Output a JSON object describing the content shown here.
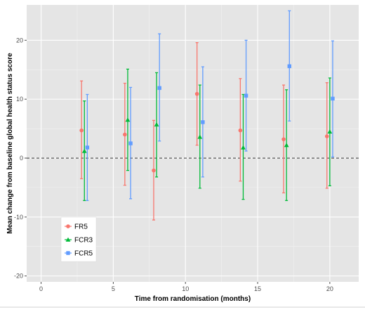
{
  "chart_data": {
    "type": "scatter",
    "title": "",
    "xlabel": "Time from randomisation (months)",
    "ylabel": "Mean change from baseline global health status score",
    "xlim": [
      -1,
      22
    ],
    "ylim": [
      -21,
      26
    ],
    "xticks": [
      0,
      5,
      10,
      15,
      20
    ],
    "yticks": [
      -20,
      -10,
      0,
      10,
      20
    ],
    "grid": true,
    "reference_line": {
      "y": 0,
      "style": "dashed"
    },
    "legend": {
      "position": "bottom-left"
    },
    "series": [
      {
        "name": "FR5",
        "color": "#F8766D",
        "marker": "circle",
        "points": [
          {
            "x": 2.8,
            "y": 4.7,
            "low": -3.5,
            "high": 13.1
          },
          {
            "x": 5.8,
            "y": 4.0,
            "low": -4.6,
            "high": 12.7
          },
          {
            "x": 7.8,
            "y": -2.1,
            "low": -10.5,
            "high": 6.4
          },
          {
            "x": 10.8,
            "y": 10.9,
            "low": 2.2,
            "high": 19.6
          },
          {
            "x": 13.8,
            "y": 4.7,
            "low": -3.9,
            "high": 13.5
          },
          {
            "x": 16.8,
            "y": 3.2,
            "low": -5.9,
            "high": 12.4
          },
          {
            "x": 19.8,
            "y": 3.7,
            "low": -5.1,
            "high": 12.8
          }
        ]
      },
      {
        "name": "FCR3",
        "color": "#00BA38",
        "marker": "triangle",
        "points": [
          {
            "x": 3.0,
            "y": 1.2,
            "low": -7.2,
            "high": 9.7
          },
          {
            "x": 6.0,
            "y": 6.5,
            "low": -2.1,
            "high": 15.1
          },
          {
            "x": 8.0,
            "y": 5.7,
            "low": -3.2,
            "high": 14.5
          },
          {
            "x": 11.0,
            "y": 3.6,
            "low": -5.1,
            "high": 12.4
          },
          {
            "x": 14.0,
            "y": 1.8,
            "low": -7.0,
            "high": 10.8
          },
          {
            "x": 17.0,
            "y": 2.2,
            "low": -7.2,
            "high": 11.6
          },
          {
            "x": 20.0,
            "y": 4.5,
            "low": -4.7,
            "high": 13.6
          }
        ]
      },
      {
        "name": "FCR5",
        "color": "#619CFF",
        "marker": "square",
        "points": [
          {
            "x": 3.2,
            "y": 1.8,
            "low": -7.2,
            "high": 10.8
          },
          {
            "x": 6.2,
            "y": 2.5,
            "low": -6.9,
            "high": 12.0
          },
          {
            "x": 8.2,
            "y": 11.9,
            "low": 2.9,
            "high": 21.1
          },
          {
            "x": 11.2,
            "y": 6.1,
            "low": -3.2,
            "high": 15.5
          },
          {
            "x": 14.2,
            "y": 10.6,
            "low": 1.2,
            "high": 20.0
          },
          {
            "x": 17.2,
            "y": 15.6,
            "low": 6.3,
            "high": 25.0
          },
          {
            "x": 20.2,
            "y": 10.1,
            "low": 0.2,
            "high": 19.9
          }
        ]
      }
    ]
  }
}
